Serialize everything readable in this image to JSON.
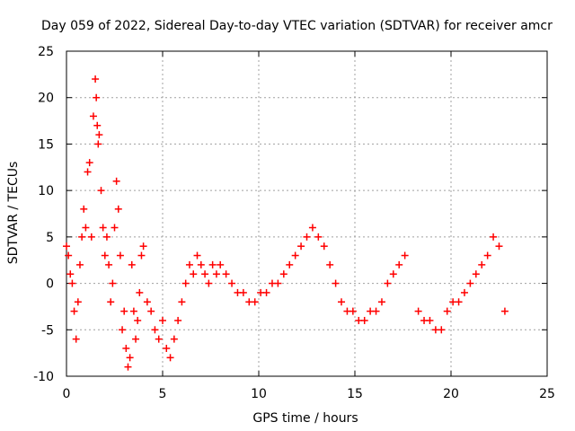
{
  "chart_data": {
    "type": "scatter",
    "title": "Day 059 of 2022, Sidereal Day-to-day VTEC variation (SDTVAR) for receiver amcr",
    "xlabel": "GPS time / hours",
    "ylabel": "SDTVAR / TECUs",
    "xlim": [
      0,
      25
    ],
    "ylim": [
      -10,
      25
    ],
    "xticks": [
      0,
      5,
      10,
      15,
      20,
      25
    ],
    "yticks": [
      -10,
      -5,
      0,
      5,
      10,
      15,
      20,
      25
    ],
    "grid": true,
    "marker": "+",
    "series_color": "#ff0000",
    "series": [
      {
        "name": "SDTVAR",
        "x": [
          0.0,
          0.1,
          0.2,
          0.3,
          0.4,
          0.5,
          0.6,
          0.7,
          0.8,
          0.9,
          1.0,
          1.1,
          1.2,
          1.3,
          1.4,
          1.5,
          1.55,
          1.6,
          1.65,
          1.7,
          1.8,
          1.9,
          2.0,
          2.1,
          2.2,
          2.3,
          2.4,
          2.5,
          2.6,
          2.7,
          2.8,
          2.9,
          3.0,
          3.1,
          3.2,
          3.3,
          3.4,
          3.5,
          3.6,
          3.7,
          3.8,
          3.9,
          4.0,
          4.2,
          4.4,
          4.6,
          4.8,
          5.0,
          5.2,
          5.4,
          5.6,
          5.8,
          6.0,
          6.2,
          6.4,
          6.6,
          6.8,
          7.0,
          7.2,
          7.4,
          7.6,
          7.8,
          8.0,
          8.3,
          8.6,
          8.9,
          9.2,
          9.5,
          9.8,
          10.1,
          10.4,
          10.7,
          11.0,
          11.3,
          11.6,
          11.9,
          12.2,
          12.5,
          12.8,
          13.1,
          13.4,
          13.7,
          14.0,
          14.3,
          14.6,
          14.9,
          15.2,
          15.5,
          15.8,
          16.1,
          16.4,
          16.7,
          17.0,
          17.3,
          17.6,
          18.3,
          18.6,
          18.9,
          19.2,
          19.5,
          19.8,
          20.1,
          20.4,
          20.7,
          21.0,
          21.3,
          21.6,
          21.9,
          22.2,
          22.5,
          22.8
        ],
        "y": [
          4.0,
          3.0,
          1.0,
          0.0,
          -3.0,
          -6.0,
          -2.0,
          2.0,
          5.0,
          8.0,
          6.0,
          12.0,
          13.0,
          5.0,
          18.0,
          22.0,
          20.0,
          17.0,
          15.0,
          16.0,
          10.0,
          6.0,
          3.0,
          5.0,
          2.0,
          -2.0,
          0.0,
          6.0,
          11.0,
          8.0,
          3.0,
          -5.0,
          -3.0,
          -7.0,
          -9.0,
          -8.0,
          2.0,
          -3.0,
          -6.0,
          -4.0,
          -1.0,
          3.0,
          4.0,
          -2.0,
          -3.0,
          -5.0,
          -6.0,
          -4.0,
          -7.0,
          -8.0,
          -6.0,
          -4.0,
          -2.0,
          0.0,
          2.0,
          1.0,
          3.0,
          2.0,
          1.0,
          0.0,
          2.0,
          1.0,
          2.0,
          1.0,
          0.0,
          -1.0,
          -1.0,
          -2.0,
          -2.0,
          -1.0,
          -1.0,
          0.0,
          0.0,
          1.0,
          2.0,
          3.0,
          4.0,
          5.0,
          6.0,
          5.0,
          4.0,
          2.0,
          0.0,
          -2.0,
          -3.0,
          -3.0,
          -4.0,
          -4.0,
          -3.0,
          -3.0,
          -2.0,
          0.0,
          1.0,
          2.0,
          3.0,
          -3.0,
          -4.0,
          -4.0,
          -5.0,
          -5.0,
          -3.0,
          -2.0,
          -2.0,
          -1.0,
          0.0,
          1.0,
          2.0,
          3.0,
          5.0,
          4.0,
          -3.0
        ]
      }
    ]
  }
}
